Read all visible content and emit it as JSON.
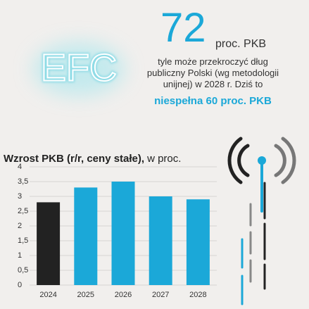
{
  "logo": "EFC",
  "header": {
    "number": "72",
    "unit": "proc. PKB",
    "text": "tyle może przekroczyć dług publiczny Polski (wg metodologii unijnej) w 2028 r. Dziś to",
    "highlight": "niespełna 60 proc. PKB"
  },
  "chart_data": {
    "type": "bar",
    "title": "Wzrost PKB (r/r, ceny stałe),",
    "ylabel": "w proc.",
    "categories": [
      "2024",
      "2025",
      "2026",
      "2027",
      "2028"
    ],
    "values": [
      2.8,
      3.3,
      3.5,
      3.0,
      2.9
    ],
    "colors": [
      "#222222",
      "#1ba8d8",
      "#1ba8d8",
      "#1ba8d8",
      "#1ba8d8"
    ],
    "ylim": [
      0,
      4
    ],
    "yticks": [
      0,
      {
        "value": 0.5,
        "label": "0,5"
      },
      1,
      {
        "value": 1.5,
        "label": "1,5"
      },
      2,
      {
        "value": 2.5,
        "label": "2,5"
      },
      3,
      {
        "value": 3.5,
        "label": "3,5"
      },
      4
    ],
    "grid": true
  }
}
